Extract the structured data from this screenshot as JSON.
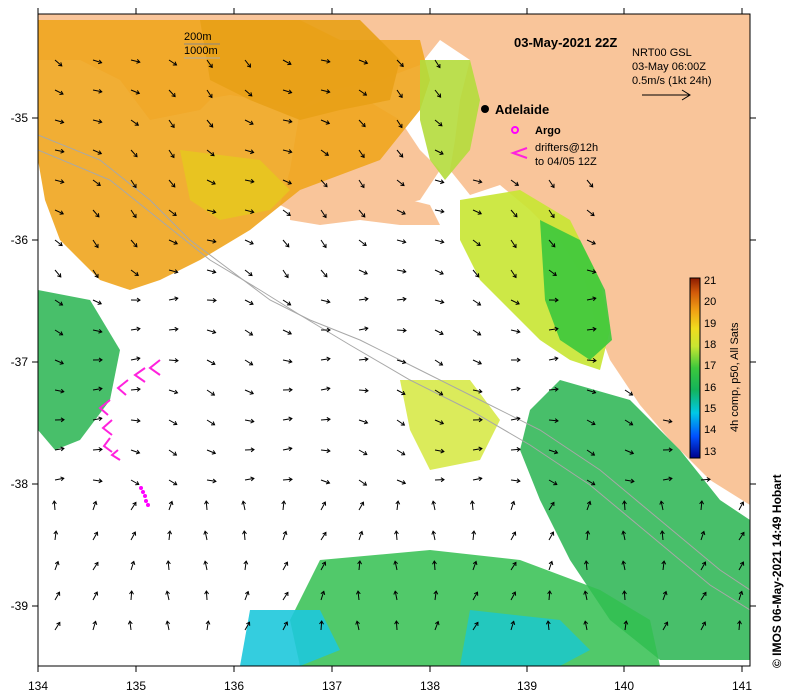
{
  "map": {
    "title": "03-May-2021 22Z",
    "depth_legend": [
      "200m",
      "1000m"
    ],
    "current_info": {
      "line1": "NRT00 GSL",
      "line2": "03-May 06:00Z",
      "line3": "0.5m/s (1kt 24h)"
    },
    "city": "Adelaide",
    "argo_label": "Argo",
    "drifters_line1": "drifters@12h",
    "drifters_line2": "to 04/05 12Z",
    "colorbar_label": "4h comp, p50, All Sats",
    "colorbar_ticks": [
      "21",
      "20",
      "19",
      "18",
      "17",
      "16",
      "15",
      "14",
      "13"
    ],
    "credit": "© IMOS 06-May-2021 14:49 Hobart",
    "x_ticks": [
      "134",
      "135",
      "136",
      "137",
      "138",
      "139",
      "140",
      "141"
    ],
    "y_ticks": [
      "-35",
      "-36",
      "-37",
      "-38",
      "-39"
    ],
    "colors": {
      "land": "#f9c59a",
      "argo": "#ff00ff",
      "drifter": "#ff22dd",
      "isobath": "#a8a8a8"
    }
  }
}
